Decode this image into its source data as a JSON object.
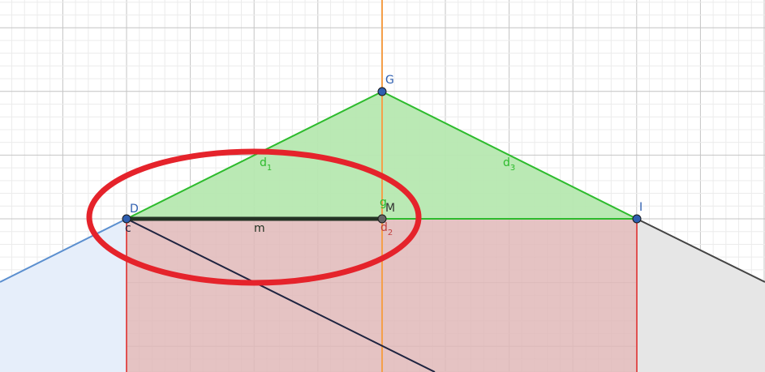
{
  "points": {
    "D": {
      "label": "D"
    },
    "G": {
      "label": "G"
    },
    "I": {
      "label": "I"
    },
    "M": {
      "label": "M"
    }
  },
  "labels": {
    "c": "c",
    "m": "m",
    "g": "g",
    "d1_main": "d",
    "d1_sub": "1",
    "d2_main": "d",
    "d2_sub": "2",
    "d3_main": "d",
    "d3_sub": "3",
    "g_partial": "ʃ"
  },
  "colors": {
    "triangle_fill": "#b6e8b0",
    "triangle_stroke": "#2dbb2d",
    "red_fill": "#e0b9b9",
    "red_stroke": "#e05050",
    "blue_fill": "#e6eefa",
    "blue_stroke": "#5b8fcf",
    "gray_fill": "#e6e6e6",
    "gray_stroke": "#444444",
    "orange_line": "#f5a04a",
    "segment_m": "#243324",
    "navy_line": "#1f2440",
    "ellipse": "#e5232b",
    "point_fill": "#2f5fb0",
    "point_M_fill": "#666666",
    "label_blue": "#2f5fb0",
    "label_green": "#2dbb2d",
    "label_red": "#c04040"
  }
}
